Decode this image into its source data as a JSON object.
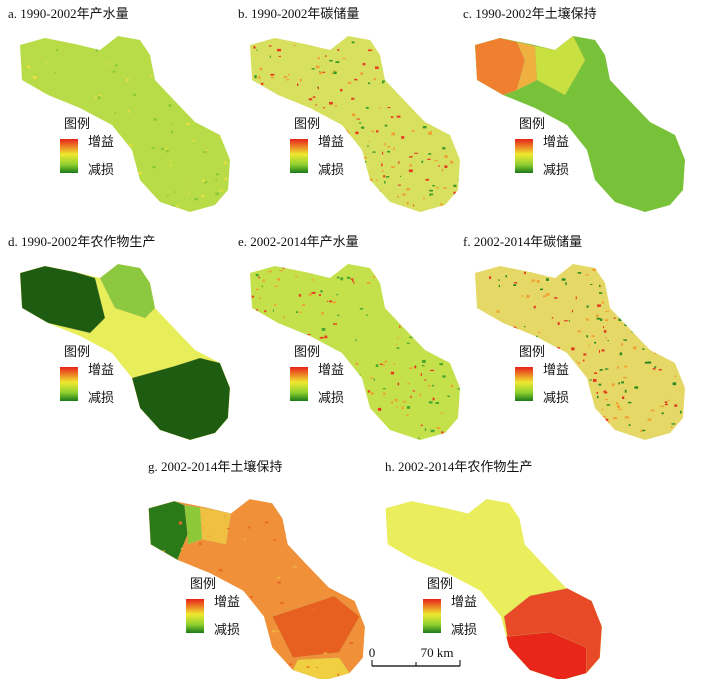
{
  "panels": [
    {
      "title": "a. 1990-2002年产水量",
      "legend": {
        "title": "图例",
        "gain": "增益",
        "loss": "减损"
      }
    },
    {
      "title": "b. 1990-2002年碳储量",
      "legend": {
        "title": "图例",
        "gain": "增益",
        "loss": "减损"
      }
    },
    {
      "title": "c. 1990-2002年土壤保持",
      "legend": {
        "title": "图例",
        "gain": "增益",
        "loss": "减损"
      }
    },
    {
      "title": "d. 1990-2002年农作物生产",
      "legend": {
        "title": "图例",
        "gain": "增益",
        "loss": "减损"
      }
    },
    {
      "title": "e. 2002-2014年产水量",
      "legend": {
        "title": "图例",
        "gain": "增益",
        "loss": "减损"
      }
    },
    {
      "title": "f. 2002-2014年碳储量",
      "legend": {
        "title": "图例",
        "gain": "增益",
        "loss": "减损"
      }
    },
    {
      "title": "g. 2002-2014年土壤保持",
      "legend": {
        "title": "图例",
        "gain": "增益",
        "loss": "减损"
      }
    },
    {
      "title": "h. 2002-2014年农作物生产",
      "legend": {
        "title": "图例",
        "gain": "增益",
        "loss": "减损"
      }
    }
  ],
  "scale_bar": {
    "start": "0",
    "end": "70 km"
  }
}
